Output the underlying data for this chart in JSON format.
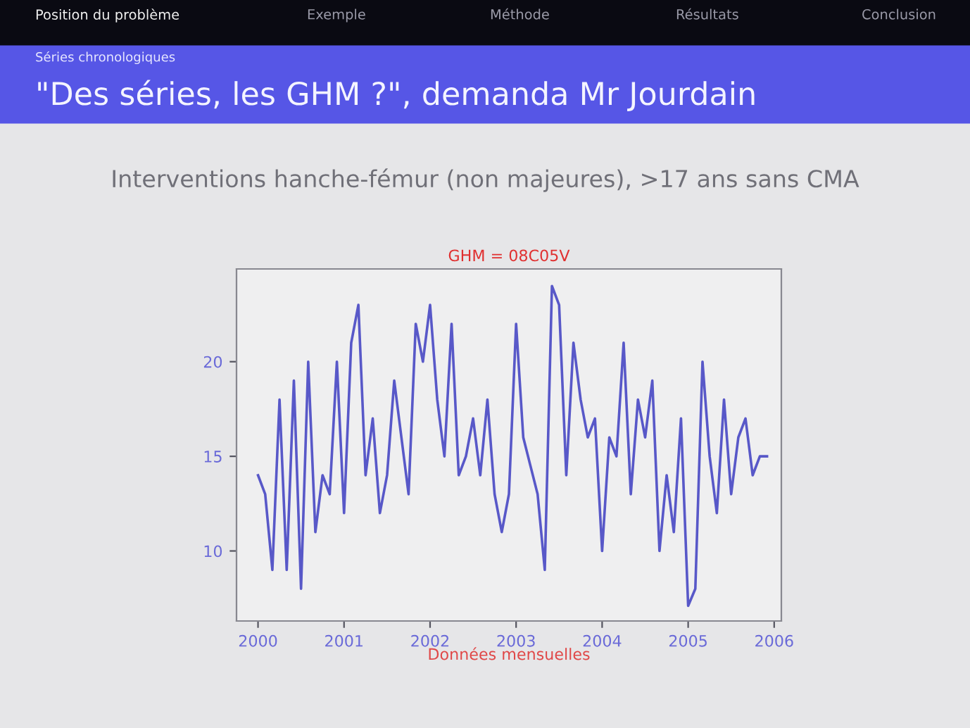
{
  "chart_data": {
    "type": "line",
    "title": "GHM = 08C05V",
    "subtitle": "Interventions hanche-fémur (non majeures), >17 ans sans CMA",
    "xlabel": "Données mensuelles",
    "annotations": [
      "Position du problème",
      "Exemple",
      "Méthode",
      "Résultats",
      "Conclusion",
      "Séries chronologiques",
      "\"Des séries, les GHM ?\", demanda Mr Jourdain"
    ],
    "x": [
      "2000-01",
      "2000-02",
      "2000-03",
      "2000-04",
      "2000-05",
      "2000-06",
      "2000-07",
      "2000-08",
      "2000-09",
      "2000-10",
      "2000-11",
      "2000-12",
      "2001-01",
      "2001-02",
      "2001-03",
      "2001-04",
      "2001-05",
      "2001-06",
      "2001-07",
      "2001-08",
      "2001-09",
      "2001-10",
      "2001-11",
      "2001-12",
      "2002-01",
      "2002-02",
      "2002-03",
      "2002-04",
      "2002-05",
      "2002-06",
      "2002-07",
      "2002-08",
      "2002-09",
      "2002-10",
      "2002-11",
      "2002-12",
      "2003-01",
      "2003-02",
      "2003-03",
      "2003-04",
      "2003-05",
      "2003-06",
      "2003-07",
      "2003-08",
      "2003-09",
      "2003-10",
      "2003-11",
      "2003-12",
      "2004-01",
      "2004-02",
      "2004-03",
      "2004-04",
      "2004-05",
      "2004-06",
      "2004-07",
      "2004-08",
      "2004-09",
      "2004-10",
      "2004-11",
      "2004-12",
      "2005-01",
      "2005-02",
      "2005-03",
      "2005-04",
      "2005-05",
      "2005-06",
      "2005-07",
      "2005-08",
      "2005-09",
      "2005-10",
      "2005-11",
      "2005-12"
    ],
    "series": [
      {
        "color": "#5858c8",
        "values": [
          14,
          13,
          9,
          18,
          9,
          19,
          8,
          20,
          11,
          14,
          13,
          20,
          12,
          21,
          23,
          14,
          17,
          12,
          14,
          19,
          16,
          13,
          22,
          20,
          23,
          18,
          15,
          22,
          14,
          15,
          17,
          14,
          18,
          13,
          11,
          13,
          22,
          16,
          14.5,
          13,
          9,
          24,
          23,
          14,
          21,
          18,
          16,
          17,
          10,
          16,
          15,
          21,
          13,
          18,
          16,
          19,
          10,
          14,
          11,
          17,
          7.1,
          8,
          20,
          15,
          12,
          18,
          13,
          16,
          17,
          14,
          15,
          15
        ]
      }
    ],
    "xlim": [
      "1999-10",
      "2006-02"
    ],
    "ylim": [
      6.3,
      24.9
    ],
    "xticks": [
      {
        "value": "2000-01",
        "label": "2000"
      },
      {
        "value": "2001-01",
        "label": "2001"
      },
      {
        "value": "2002-01",
        "label": "2002"
      },
      {
        "value": "2003-01",
        "label": "2003"
      },
      {
        "value": "2004-01",
        "label": "2004"
      },
      {
        "value": "2005-01",
        "label": "2005"
      },
      {
        "value": "2006-01",
        "label": "2006"
      }
    ],
    "yticks": [
      10,
      15,
      20
    ],
    "marker": "none",
    "line_style": "solid"
  }
}
